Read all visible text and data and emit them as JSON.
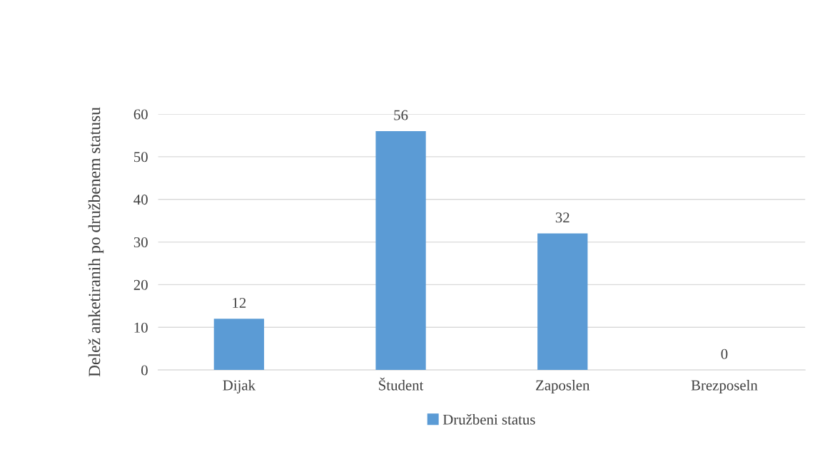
{
  "chart_data": {
    "type": "bar",
    "ylabel": "Delež anketiranih po družbenem statusu",
    "categories": [
      "Dijak",
      "Študent",
      "Zaposlen",
      "Brezposeln"
    ],
    "series": [
      {
        "name": "Družbeni status",
        "color": "#5b9bd5",
        "values": [
          12,
          56,
          32,
          0
        ]
      }
    ],
    "ylim": [
      0,
      60
    ],
    "yticks": [
      0,
      10,
      20,
      30,
      40,
      50,
      60
    ],
    "grid": "y",
    "legend": "bottom",
    "data_labels": true
  }
}
